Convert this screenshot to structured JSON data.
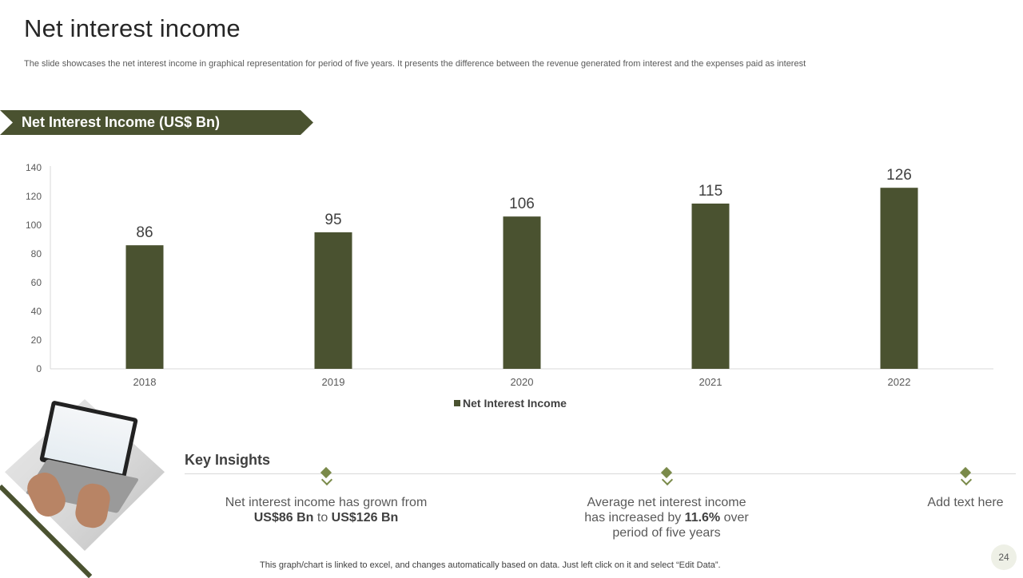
{
  "slide": {
    "title": "Net interest income",
    "subtitle": "The slide showcases the net interest income in graphical representation for period of five years. It presents the difference between the revenue generated from interest and the expenses paid as interest",
    "banner_label": "Net Interest Income (US$ Bn)",
    "page_number": "24",
    "footnote": "This graph/chart is linked to excel,  and changes automatically based on data. Just left click on it and select “Edit Data”."
  },
  "colors": {
    "bar": "#4a5230",
    "accent": "#7a8a4a",
    "axis_text": "#595959"
  },
  "chart_data": {
    "type": "bar",
    "title": "",
    "categories": [
      "2018",
      "2019",
      "2020",
      "2021",
      "2022"
    ],
    "series": [
      {
        "name": "Net Interest Income",
        "values": [
          86,
          95,
          106,
          115,
          126
        ]
      }
    ],
    "ylim": [
      0,
      140
    ],
    "yticks": [
      0,
      20,
      40,
      60,
      80,
      100,
      120,
      140
    ],
    "grid": false,
    "legend": "bottom",
    "data_labels": true
  },
  "insights": {
    "title": "Key Insights",
    "items": [
      {
        "line1": "Net interest income has grown from",
        "b1": "US$86 Bn",
        "mid": " to ",
        "b2": "US$126 Bn"
      },
      {
        "line1": "Average net interest income",
        "pre": "has increased by ",
        "b1": "11.6%",
        "post": " over",
        "line3": "period of five years"
      },
      {
        "line1": "Add text here"
      }
    ]
  }
}
